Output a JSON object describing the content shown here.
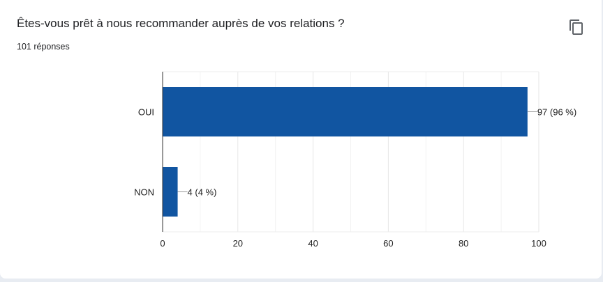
{
  "header": {
    "title": "Êtes-vous prêt à nous recommander auprès de vos relations ?",
    "response_count": "101 réponses",
    "copy_icon": "copy-icon"
  },
  "chart_data": {
    "type": "bar",
    "orientation": "horizontal",
    "categories": [
      "OUI",
      "NON"
    ],
    "values": [
      97,
      4
    ],
    "data_labels": [
      "97 (96 %)",
      "4 (4 %)"
    ],
    "xlim": [
      0,
      100
    ],
    "x_ticks": [
      "0",
      "20",
      "40",
      "60",
      "80",
      "100"
    ],
    "grid": true,
    "bar_color": "#1155a1"
  }
}
